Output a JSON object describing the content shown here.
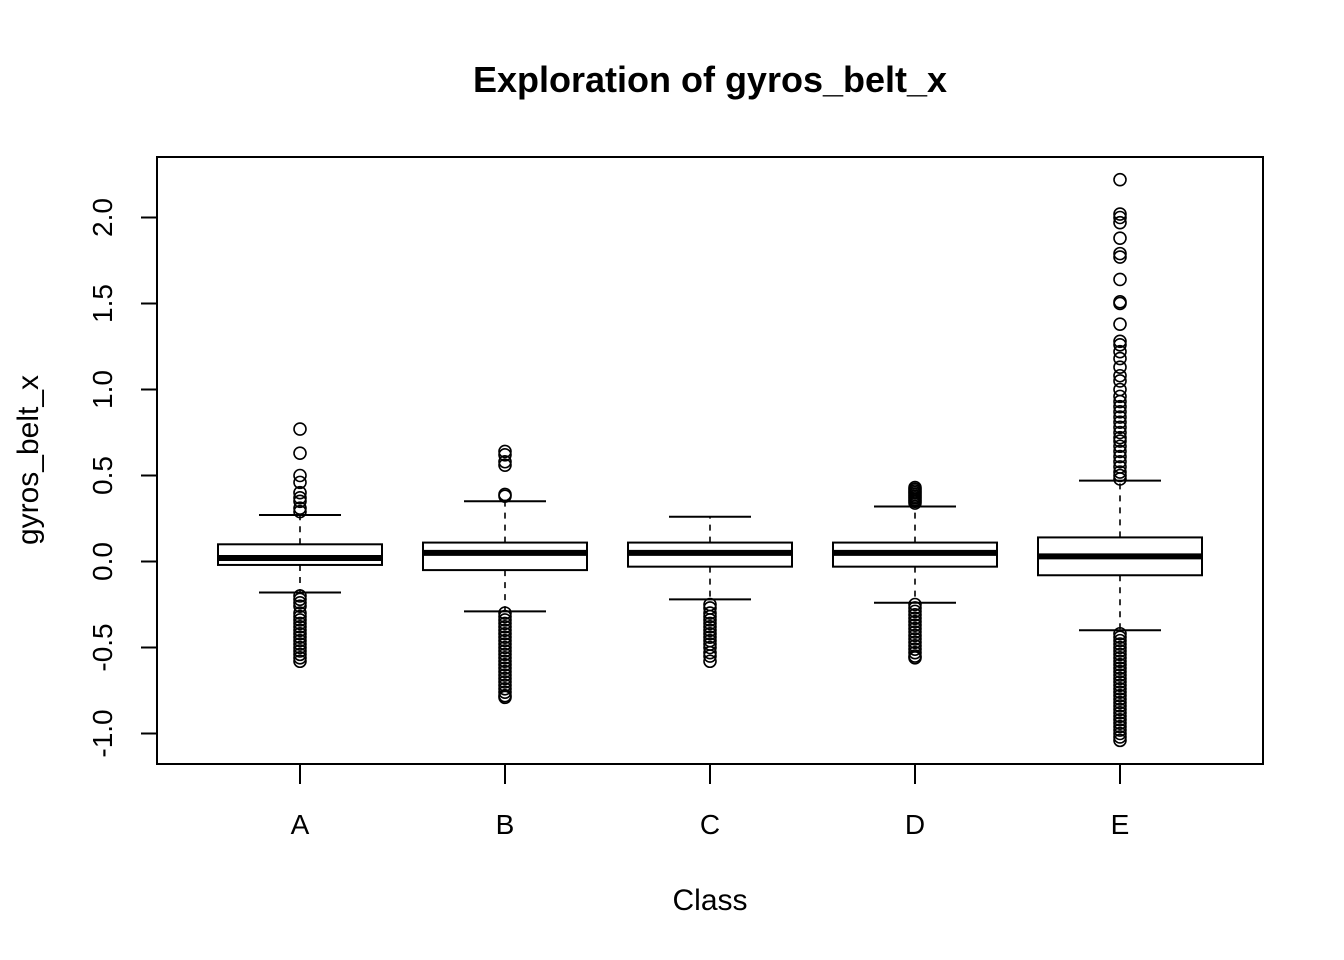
{
  "chart_data": {
    "type": "boxplot",
    "title": "Exploration of  gyros_belt_x",
    "xlabel": "Class",
    "ylabel": "gyros_belt_x",
    "ylim": [
      -1.05,
      2.25
    ],
    "yticks": [
      "-1.0",
      "-0.5",
      "0.0",
      "0.5",
      "1.0",
      "1.5",
      "2.0"
    ],
    "categories": [
      "A",
      "B",
      "C",
      "D",
      "E"
    ],
    "boxes": [
      {
        "category": "A",
        "whisker_low": -0.18,
        "q1": -0.02,
        "median": 0.02,
        "q3": 0.1,
        "whisker_high": 0.27,
        "outliers": [
          0.77,
          0.63,
          0.5,
          0.46,
          0.4,
          0.37,
          0.35,
          0.31,
          0.29,
          -0.2,
          -0.22,
          -0.24,
          -0.26,
          -0.3,
          -0.32,
          -0.34,
          -0.36,
          -0.38,
          -0.4,
          -0.42,
          -0.44,
          -0.46,
          -0.48,
          -0.5,
          -0.52,
          -0.54,
          -0.56,
          -0.58
        ]
      },
      {
        "category": "B",
        "whisker_low": -0.29,
        "q1": -0.05,
        "median": 0.05,
        "q3": 0.11,
        "whisker_high": 0.35,
        "outliers": [
          0.64,
          0.62,
          0.58,
          0.56,
          0.39,
          0.38,
          -0.3,
          -0.32,
          -0.34,
          -0.36,
          -0.38,
          -0.4,
          -0.42,
          -0.44,
          -0.46,
          -0.48,
          -0.5,
          -0.52,
          -0.54,
          -0.56,
          -0.58,
          -0.6,
          -0.62,
          -0.64,
          -0.66,
          -0.68,
          -0.7,
          -0.72,
          -0.74,
          -0.76,
          -0.78,
          -0.79
        ]
      },
      {
        "category": "C",
        "whisker_low": -0.22,
        "q1": -0.03,
        "median": 0.05,
        "q3": 0.11,
        "whisker_high": 0.26,
        "outliers": [
          -0.25,
          -0.27,
          -0.3,
          -0.32,
          -0.34,
          -0.36,
          -0.38,
          -0.4,
          -0.42,
          -0.44,
          -0.46,
          -0.48,
          -0.5,
          -0.53,
          -0.55,
          -0.58
        ]
      },
      {
        "category": "D",
        "whisker_low": -0.24,
        "q1": -0.03,
        "median": 0.05,
        "q3": 0.11,
        "whisker_high": 0.32,
        "outliers": [
          0.43,
          0.42,
          0.41,
          0.4,
          0.39,
          0.38,
          0.37,
          0.36,
          0.35,
          0.34,
          -0.25,
          -0.27,
          -0.29,
          -0.31,
          -0.33,
          -0.35,
          -0.37,
          -0.39,
          -0.41,
          -0.43,
          -0.45,
          -0.47,
          -0.49,
          -0.51,
          -0.53,
          -0.55,
          -0.56
        ]
      },
      {
        "category": "E",
        "whisker_low": -0.4,
        "q1": -0.08,
        "median": 0.03,
        "q3": 0.14,
        "whisker_high": 0.47,
        "outliers": [
          2.22,
          2.02,
          2.0,
          1.97,
          1.88,
          1.79,
          1.77,
          1.64,
          1.51,
          1.5,
          1.38,
          1.28,
          1.26,
          1.22,
          1.18,
          1.13,
          1.08,
          1.05,
          1.0,
          0.96,
          0.93,
          0.9,
          0.87,
          0.84,
          0.81,
          0.78,
          0.75,
          0.72,
          0.7,
          0.67,
          0.64,
          0.61,
          0.58,
          0.55,
          0.52,
          0.5,
          0.48,
          -0.42,
          -0.44,
          -0.46,
          -0.48,
          -0.5,
          -0.52,
          -0.54,
          -0.56,
          -0.58,
          -0.6,
          -0.62,
          -0.64,
          -0.66,
          -0.68,
          -0.7,
          -0.72,
          -0.74,
          -0.76,
          -0.78,
          -0.8,
          -0.82,
          -0.84,
          -0.86,
          -0.88,
          -0.9,
          -0.92,
          -0.94,
          -0.96,
          -0.98,
          -1.0,
          -1.02,
          -1.04
        ]
      }
    ]
  }
}
